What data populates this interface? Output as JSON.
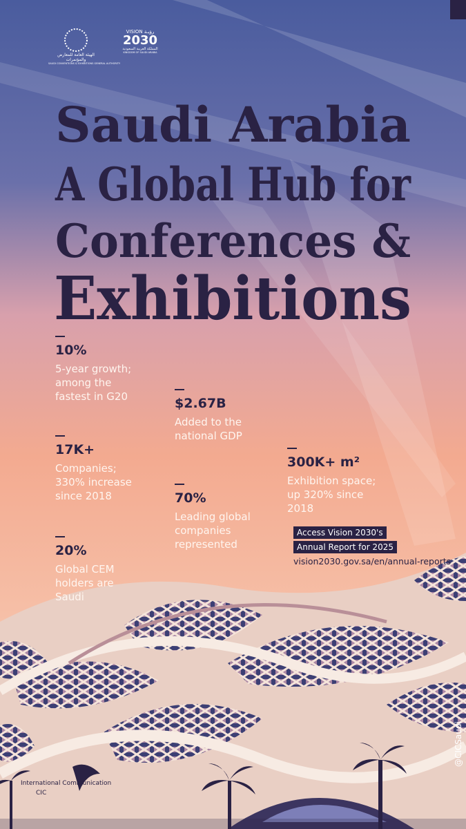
{
  "logos": {
    "authority_ar": "الهيئة العامة للمعارض والمؤتمرات",
    "authority_en": "SAUDI CONVENTIONS & EXHIBITIONS GENERAL AUTHORITY",
    "vision_ar": "رؤيـة",
    "vision": "VISION",
    "vision_year": "2030",
    "vision_country_ar": "المملكة العربية السعودية",
    "vision_country": "KINGDOM OF SAUDI ARABIA"
  },
  "title": [
    "Saudi Arabia",
    "A Global Hub for",
    "Conferences &",
    "Exhibitions"
  ],
  "stats": [
    {
      "value": "10%",
      "description": "5-year growth; among the fastest in G20"
    },
    {
      "value": "17K+",
      "description": "Companies; 330% increase since 2018"
    },
    {
      "value": "20%",
      "description": "Global CEM holders are Saudi"
    },
    {
      "value": "$2.67B",
      "description": "Added to the national GDP"
    },
    {
      "value": "70%",
      "description": "Leading global companies represented"
    },
    {
      "value": "300K+ m²",
      "description": "Exhibition space; up 320% since 2018"
    }
  ],
  "report": {
    "line1": "Access Vision 2030's",
    "line2": "Annual Report for 2025",
    "url": "vision2030.gov.sa/en/annual-reports"
  },
  "footer": {
    "org": "International Communication",
    "org_short": "CIC",
    "handle": "@CICSaudi"
  }
}
